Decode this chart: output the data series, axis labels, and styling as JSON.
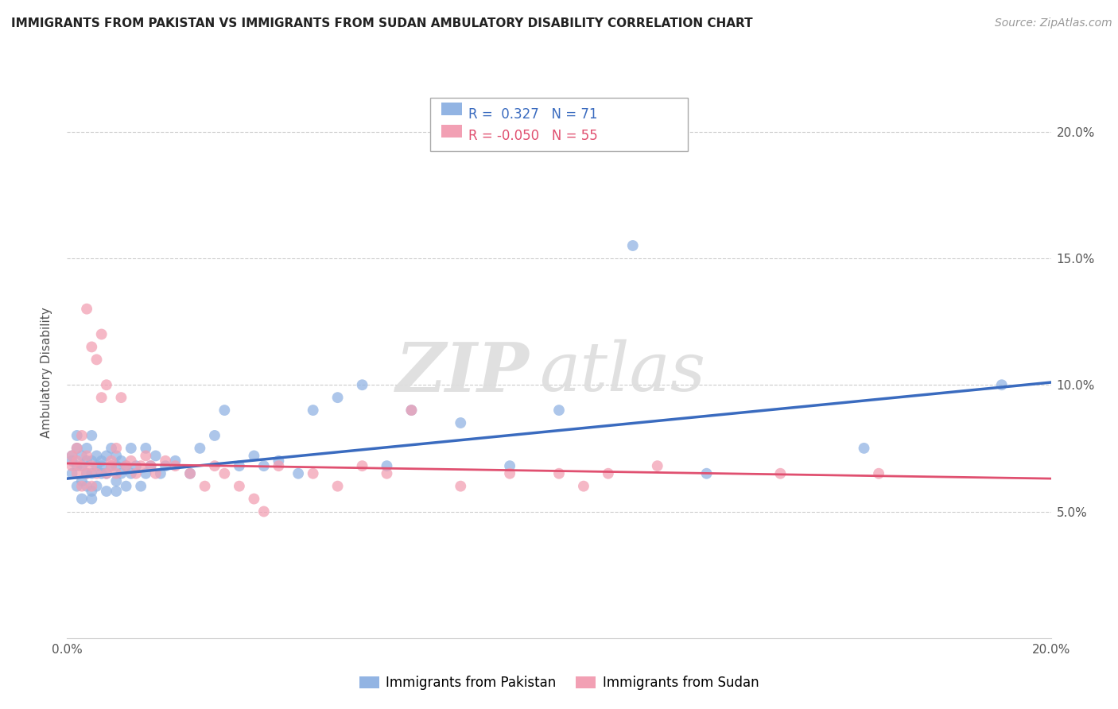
{
  "title": "IMMIGRANTS FROM PAKISTAN VS IMMIGRANTS FROM SUDAN AMBULATORY DISABILITY CORRELATION CHART",
  "source": "Source: ZipAtlas.com",
  "ylabel": "Ambulatory Disability",
  "xlim": [
    0,
    0.2
  ],
  "ylim": [
    0,
    0.21
  ],
  "yticks": [
    0.05,
    0.1,
    0.15,
    0.2
  ],
  "ytick_labels": [
    "5.0%",
    "10.0%",
    "15.0%",
    "20.0%"
  ],
  "color_pakistan": "#92B4E3",
  "color_sudan": "#F2A0B4",
  "line_color_pakistan": "#3A6BBF",
  "line_color_sudan": "#E05070",
  "r_pakistan": 0.327,
  "n_pakistan": 71,
  "r_sudan": -0.05,
  "n_sudan": 55,
  "watermark_zip": "ZIP",
  "watermark_atlas": "atlas",
  "legend_pakistan": "Immigrants from Pakistan",
  "legend_sudan": "Immigrants from Sudan",
  "pakistan_x": [
    0.001,
    0.001,
    0.001,
    0.002,
    0.002,
    0.002,
    0.002,
    0.003,
    0.003,
    0.003,
    0.003,
    0.004,
    0.004,
    0.004,
    0.004,
    0.005,
    0.005,
    0.005,
    0.005,
    0.005,
    0.006,
    0.006,
    0.006,
    0.007,
    0.007,
    0.007,
    0.008,
    0.008,
    0.008,
    0.009,
    0.009,
    0.01,
    0.01,
    0.01,
    0.01,
    0.011,
    0.011,
    0.012,
    0.012,
    0.013,
    0.013,
    0.014,
    0.015,
    0.016,
    0.016,
    0.017,
    0.018,
    0.019,
    0.02,
    0.022,
    0.025,
    0.027,
    0.03,
    0.032,
    0.035,
    0.038,
    0.04,
    0.043,
    0.047,
    0.05,
    0.055,
    0.06,
    0.065,
    0.07,
    0.08,
    0.09,
    0.1,
    0.115,
    0.13,
    0.162,
    0.19
  ],
  "pakistan_y": [
    0.065,
    0.07,
    0.072,
    0.06,
    0.068,
    0.075,
    0.08,
    0.062,
    0.068,
    0.072,
    0.055,
    0.065,
    0.07,
    0.06,
    0.075,
    0.058,
    0.065,
    0.07,
    0.08,
    0.055,
    0.068,
    0.072,
    0.06,
    0.065,
    0.07,
    0.068,
    0.065,
    0.072,
    0.058,
    0.068,
    0.075,
    0.062,
    0.068,
    0.072,
    0.058,
    0.065,
    0.07,
    0.068,
    0.06,
    0.075,
    0.065,
    0.068,
    0.06,
    0.075,
    0.065,
    0.068,
    0.072,
    0.065,
    0.068,
    0.07,
    0.065,
    0.075,
    0.08,
    0.09,
    0.068,
    0.072,
    0.068,
    0.07,
    0.065,
    0.09,
    0.095,
    0.1,
    0.068,
    0.09,
    0.085,
    0.068,
    0.09,
    0.155,
    0.065,
    0.075,
    0.1
  ],
  "sudan_x": [
    0.001,
    0.001,
    0.002,
    0.002,
    0.002,
    0.003,
    0.003,
    0.003,
    0.004,
    0.004,
    0.004,
    0.005,
    0.005,
    0.005,
    0.006,
    0.006,
    0.007,
    0.007,
    0.008,
    0.008,
    0.009,
    0.009,
    0.01,
    0.01,
    0.011,
    0.012,
    0.013,
    0.014,
    0.015,
    0.016,
    0.017,
    0.018,
    0.02,
    0.022,
    0.025,
    0.028,
    0.03,
    0.032,
    0.035,
    0.038,
    0.04,
    0.043,
    0.05,
    0.055,
    0.06,
    0.065,
    0.07,
    0.08,
    0.09,
    0.1,
    0.105,
    0.11,
    0.12,
    0.145,
    0.165
  ],
  "sudan_y": [
    0.068,
    0.072,
    0.065,
    0.07,
    0.075,
    0.06,
    0.068,
    0.08,
    0.065,
    0.072,
    0.13,
    0.06,
    0.115,
    0.068,
    0.065,
    0.11,
    0.12,
    0.095,
    0.065,
    0.1,
    0.07,
    0.068,
    0.065,
    0.075,
    0.095,
    0.068,
    0.07,
    0.065,
    0.068,
    0.072,
    0.068,
    0.065,
    0.07,
    0.068,
    0.065,
    0.06,
    0.068,
    0.065,
    0.06,
    0.055,
    0.05,
    0.068,
    0.065,
    0.06,
    0.068,
    0.065,
    0.09,
    0.06,
    0.065,
    0.065,
    0.06,
    0.065,
    0.068,
    0.065,
    0.065
  ],
  "pak_line_x": [
    0.0,
    0.2
  ],
  "pak_line_y": [
    0.063,
    0.101
  ],
  "sud_line_x": [
    0.0,
    0.2
  ],
  "sud_line_y": [
    0.069,
    0.063
  ]
}
